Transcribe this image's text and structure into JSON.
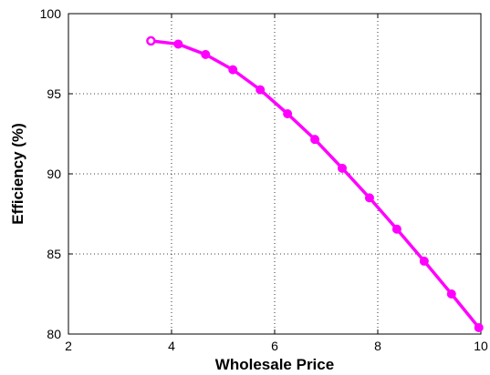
{
  "chart_data": {
    "type": "line",
    "title": "",
    "xlabel": "Wholesale Price",
    "ylabel": "Efficiency (%)",
    "xlim": [
      2,
      10
    ],
    "ylim": [
      80,
      100
    ],
    "xticks": [
      2,
      4,
      6,
      8,
      10
    ],
    "yticks": [
      80,
      85,
      90,
      95,
      100
    ],
    "grid": true,
    "grid_style": "dotted",
    "legend": "none",
    "series": [
      {
        "color": "#ff00ff",
        "marker": "circle",
        "x": [
          3.6,
          4.13,
          4.66,
          5.19,
          5.72,
          6.25,
          6.78,
          7.31,
          7.84,
          8.37,
          8.9,
          9.43,
          9.96
        ],
        "y": [
          98.3,
          98.1,
          97.45,
          96.5,
          95.25,
          93.75,
          92.15,
          90.35,
          88.5,
          86.55,
          84.55,
          82.5,
          80.4
        ]
      }
    ]
  }
}
